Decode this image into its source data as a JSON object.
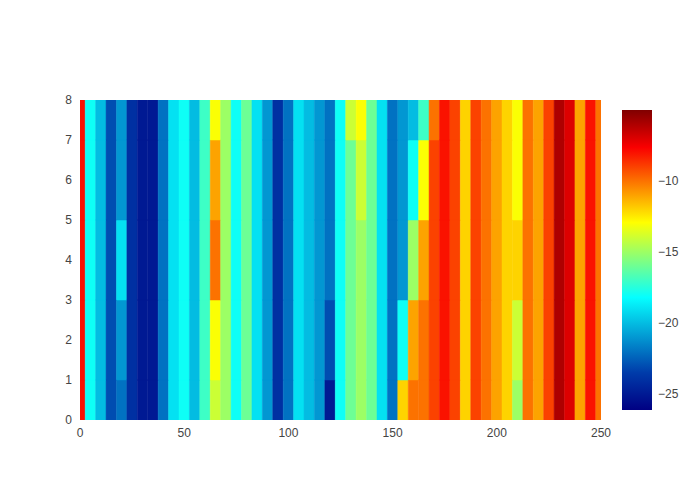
{
  "chart_data": {
    "type": "heatmap",
    "color": "Jet",
    "grid": false,
    "x": [
      0,
      5,
      10,
      15,
      20,
      25,
      30,
      35,
      40,
      45,
      50,
      55,
      60,
      65,
      70,
      75,
      80,
      85,
      90,
      95,
      100,
      105,
      110,
      115,
      120,
      125,
      130,
      135,
      140,
      145,
      150,
      155,
      160,
      165,
      170,
      175,
      180,
      185,
      190,
      195,
      200,
      205,
      210,
      215,
      220,
      225,
      230,
      235,
      240,
      245,
      250
    ],
    "y": [
      0,
      2,
      4,
      6,
      8
    ],
    "xlim": [
      0,
      250
    ],
    "ylim": [
      0,
      8
    ],
    "xticks": [
      0,
      50,
      100,
      150,
      200,
      250
    ],
    "yticks": [
      0,
      1,
      2,
      3,
      4,
      5,
      6,
      7,
      8
    ],
    "cells": [
      [
        -8,
        -18,
        -20,
        -23,
        -22,
        -24,
        -25,
        -25,
        -22,
        -19,
        -18,
        -20,
        -17,
        -14,
        -15,
        -18,
        -16,
        -19,
        -21,
        -24,
        -22,
        -19,
        -20,
        -21,
        -25,
        -18,
        -16,
        -15,
        -16,
        -19,
        -22,
        -12,
        -10,
        -10,
        -9,
        -8,
        -9,
        -12,
        -9,
        -10,
        -11,
        -12,
        -15,
        -10,
        -11,
        -9,
        -6,
        -7,
        -11,
        -8,
        -10
      ],
      [
        -8,
        -18,
        -20,
        -23,
        -21,
        -24,
        -25,
        -25,
        -22,
        -19,
        -18,
        -20,
        -17,
        -13,
        -15,
        -18,
        -16,
        -19,
        -21,
        -24,
        -22,
        -19,
        -20,
        -21,
        -23,
        -18,
        -16,
        -15,
        -16,
        -19,
        -22,
        -18,
        -11,
        -10,
        -9,
        -8,
        -9,
        -12,
        -9,
        -10,
        -11,
        -12,
        -14,
        -10,
        -11,
        -9,
        -6,
        -7,
        -11,
        -8,
        -10
      ],
      [
        -8,
        -18,
        -20,
        -23,
        -19,
        -24,
        -25,
        -25,
        -22,
        -19,
        -18,
        -20,
        -17,
        -10,
        -15,
        -18,
        -16,
        -19,
        -21,
        -24,
        -22,
        -19,
        -20,
        -21,
        -22,
        -18,
        -16,
        -15,
        -16,
        -19,
        -22,
        -21,
        -15,
        -11,
        -9,
        -8,
        -9,
        -12,
        -9,
        -10,
        -11,
        -12,
        -12,
        -10,
        -11,
        -9,
        -6,
        -7,
        -11,
        -8,
        -10
      ],
      [
        -8,
        -18,
        -20,
        -23,
        -21,
        -24,
        -25,
        -25,
        -22,
        -19,
        -18,
        -20,
        -17,
        -11,
        -15,
        -18,
        -16,
        -19,
        -21,
        -24,
        -22,
        -19,
        -20,
        -21,
        -22,
        -18,
        -16,
        -14,
        -16,
        -19,
        -22,
        -21,
        -18,
        -13,
        -9,
        -8,
        -9,
        -12,
        -9,
        -10,
        -11,
        -12,
        -13,
        -10,
        -11,
        -9,
        -6,
        -7,
        -11,
        -8,
        -10
      ],
      [
        -8,
        -18,
        -20,
        -23,
        -21,
        -24,
        -25,
        -25,
        -22,
        -19,
        -18,
        -20,
        -17,
        -13,
        -15,
        -18,
        -16,
        -19,
        -21,
        -24,
        -22,
        -19,
        -20,
        -21,
        -22,
        -18,
        -14,
        -13,
        -16,
        -19,
        -22,
        -21,
        -20,
        -17,
        -10,
        -8,
        -9,
        -12,
        -9,
        -10,
        -11,
        -12,
        -13,
        -10,
        -11,
        -9,
        -6,
        -7,
        -11,
        -8,
        -10
      ]
    ],
    "colorbar": {
      "range": [
        -26.1,
        -5
      ],
      "ticks": [
        {
          "value": -10,
          "label": "−10"
        },
        {
          "value": -15,
          "label": "−15"
        },
        {
          "value": -20,
          "label": "−20"
        },
        {
          "value": -25,
          "label": "−25"
        }
      ]
    }
  }
}
